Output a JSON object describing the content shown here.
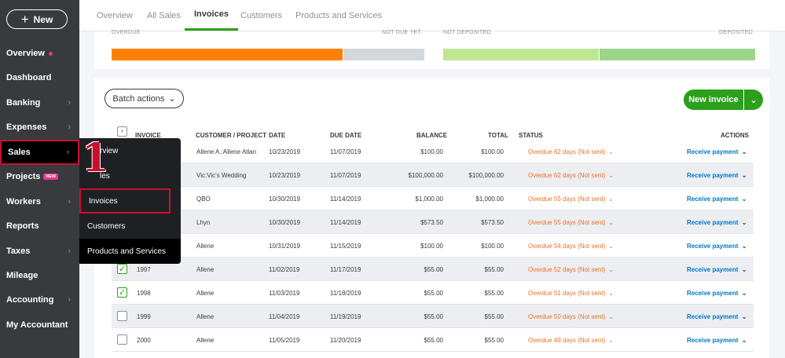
{
  "sidebar": {
    "new_label": "New",
    "items": [
      {
        "label": "Overview",
        "dot": true
      },
      {
        "label": "Dashboard"
      },
      {
        "label": "Banking",
        "chevron": true
      },
      {
        "label": "Expenses",
        "chevron": true
      },
      {
        "label": "Sales",
        "chevron": true,
        "active": true
      },
      {
        "label": "Projects",
        "badge": "NEW"
      },
      {
        "label": "Workers",
        "chevron": true
      },
      {
        "label": "Reports"
      },
      {
        "label": "Taxes",
        "chevron": true
      },
      {
        "label": "Mileage"
      },
      {
        "label": "Accounting",
        "chevron": true
      },
      {
        "label": "My Accountant"
      }
    ]
  },
  "tabs": [
    {
      "label": "Overview"
    },
    {
      "label": "All Sales"
    },
    {
      "label": "Invoices",
      "active": true
    },
    {
      "label": "Customers"
    },
    {
      "label": "Products and Services"
    }
  ],
  "moneybar": {
    "overdue_label": "OVERDUE",
    "not_due_label": "NOT DUE YET",
    "not_deposited_label": "NOT DEPOSITED",
    "deposited_label": "DEPOSITED",
    "colors": {
      "overdue": "#ff8000",
      "not_due": "#d4d7dc",
      "not_deposited": "#bfe691",
      "deposited": "#9dd48b"
    }
  },
  "toolbar": {
    "batch_actions": "Batch actions",
    "new_invoice": "New invoice"
  },
  "table": {
    "headers": [
      "INVOICE",
      "CUSTOMER / PROJECT",
      "DATE",
      "DUE DATE",
      "BALANCE",
      "TOTAL",
      "STATUS",
      "ACTIONS"
    ],
    "rows": [
      {
        "invoice": "",
        "customer": "Allene A.:Allene Atlan",
        "date": "10/23/2019",
        "due": "11/07/2019",
        "balance": "$100.00",
        "total": "$100.00",
        "status": "Overdue 62 days (Not sent)",
        "action": "Receive payment",
        "checked": false
      },
      {
        "invoice": "",
        "customer": "Vic:Vic's Wedding",
        "date": "10/23/2019",
        "due": "11/07/2019",
        "balance": "$100,000.00",
        "total": "$100,000.00",
        "status": "Overdue 62 days (Not sent)",
        "action": "Receive payment",
        "checked": false
      },
      {
        "invoice": "",
        "customer": "QBO",
        "date": "10/30/2019",
        "due": "11/14/2019",
        "balance": "$1,000.00",
        "total": "$1,000.00",
        "status": "Overdue 55 days (Not sent)",
        "action": "Receive payment",
        "checked": false
      },
      {
        "invoice": "",
        "customer": "Lhyn",
        "date": "10/30/2019",
        "due": "11/14/2019",
        "balance": "$573.50",
        "total": "$573.50",
        "status": "Overdue 55 days (Not sent)",
        "action": "Receive payment",
        "checked": false
      },
      {
        "invoice": "",
        "customer": "Allene",
        "date": "10/31/2019",
        "due": "11/15/2019",
        "balance": "$100.00",
        "total": "$100.00",
        "status": "Overdue 54 days (Not sent)",
        "action": "Receive payment",
        "checked": false
      },
      {
        "invoice": "1997",
        "customer": "Allene",
        "date": "11/02/2019",
        "due": "11/17/2019",
        "balance": "$55.00",
        "total": "$55.00",
        "status": "Overdue 52 days (Not sent)",
        "action": "Receive payment",
        "checked": true
      },
      {
        "invoice": "1998",
        "customer": "Allene",
        "date": "11/03/2019",
        "due": "11/18/2019",
        "balance": "$55.00",
        "total": "$55.00",
        "status": "Overdue 51 days (Not sent)",
        "action": "Receive payment",
        "checked": true
      },
      {
        "invoice": "1999",
        "customer": "Allene",
        "date": "11/04/2019",
        "due": "11/19/2019",
        "balance": "$55.00",
        "total": "$55.00",
        "status": "Overdue 50 days (Not sent)",
        "action": "Receive payment",
        "checked": false
      },
      {
        "invoice": "2000",
        "customer": "Allene",
        "date": "11/05/2019",
        "due": "11/20/2019",
        "balance": "$55.00",
        "total": "$55.00",
        "status": "Overdue 49 days (Not sent)",
        "action": "Receive payment",
        "checked": false
      }
    ]
  },
  "flyout": {
    "items": [
      {
        "label": "Overview",
        "shown": "rview"
      },
      {
        "label": "All Sales",
        "shown": "les"
      },
      {
        "label": "Invoices",
        "highlight": true
      },
      {
        "label": "Customers"
      },
      {
        "label": "Products and Services"
      }
    ]
  },
  "annotation": {
    "label": "1"
  }
}
